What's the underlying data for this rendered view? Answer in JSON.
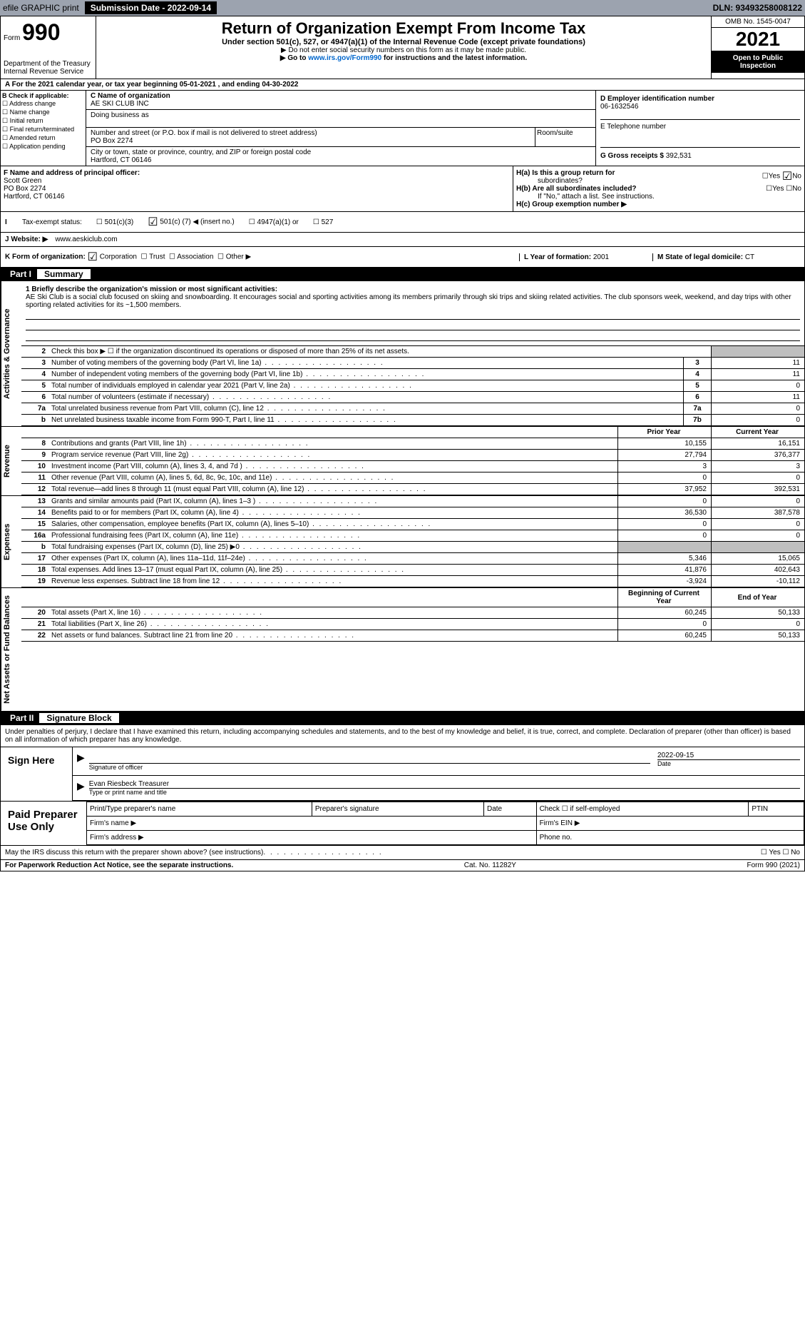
{
  "topbar": {
    "efile": "efile GRAPHIC print",
    "submission_label": "Submission Date - 2022-09-14",
    "dln": "DLN: 93493258008122"
  },
  "header": {
    "form_word": "Form",
    "form_number": "990",
    "dept1": "Department of the Treasury",
    "dept2": "Internal Revenue Service",
    "title": "Return of Organization Exempt From Income Tax",
    "subtitle": "Under section 501(c), 527, or 4947(a)(1) of the Internal Revenue Code (except private foundations)",
    "note1": "▶ Do not enter social security numbers on this form as it may be made public.",
    "note2_a": "▶ Go to ",
    "note2_link": "www.irs.gov/Form990",
    "note2_b": " for instructions and the latest information.",
    "omb": "OMB No. 1545-0047",
    "year": "2021",
    "open": "Open to Public Inspection"
  },
  "line_a": "A For the 2021 calendar year, or tax year beginning 05-01-2021    , and ending 04-30-2022",
  "box_b": {
    "hdr": "B Check if applicable:",
    "o1": "Address change",
    "o2": "Name change",
    "o3": "Initial return",
    "o4": "Final return/terminated",
    "o5": "Amended return",
    "o6": "Application pending"
  },
  "box_c": {
    "name_lbl": "C Name of organization",
    "name": "AE SKI CLUB INC",
    "dba_lbl": "Doing business as",
    "addr_lbl": "Number and street (or P.O. box if mail is not delivered to street address)",
    "room_lbl": "Room/suite",
    "addr": "PO Box 2274",
    "city_lbl": "City or town, state or province, country, and ZIP or foreign postal code",
    "city": "Hartford, CT  06146"
  },
  "box_d": {
    "ein_lbl": "D Employer identification number",
    "ein": "06-1632546",
    "phone_lbl": "E Telephone number",
    "gross_lbl": "G Gross receipts $",
    "gross": "392,531"
  },
  "box_f": {
    "lbl": "F Name and address of principal officer:",
    "name": "Scott Green",
    "addr1": "PO Box 2274",
    "addr2": "Hartford, CT  06146"
  },
  "box_h": {
    "a_lbl": "H(a)  Is this a group return for",
    "a_lbl2": "subordinates?",
    "b_lbl": "H(b)  Are all subordinates included?",
    "note": "If \"No,\" attach a list. See instructions.",
    "c_lbl": "H(c)  Group exemption number ▶",
    "yes": "Yes",
    "no": "No"
  },
  "tax_status": {
    "lbl": "Tax-exempt status:",
    "o1": "501(c)(3)",
    "o2a": "501(c) (",
    "o2n": "7",
    "o2b": ") ◀ (insert no.)",
    "o3": "4947(a)(1) or",
    "o4": "527"
  },
  "website": {
    "lbl": "J Website: ▶",
    "val": "www.aeskiclub.com"
  },
  "line_k": {
    "k_lbl": "K Form of organization:",
    "corp": "Corporation",
    "trust": "Trust",
    "assoc": "Association",
    "other": "Other ▶",
    "l_lbl": "L Year of formation:",
    "l_val": "2001",
    "m_lbl": "M State of legal domicile:",
    "m_val": "CT"
  },
  "part1": {
    "num": "Part I",
    "title": "Summary",
    "mission_lbl": "1 Briefly describe the organization's mission or most significant activities:",
    "mission": "AE Ski Club is a social club focused on skiing and snowboarding. It encourages social and sporting activities among its members primarily through ski trips and skiing related activities. The club sponsors week, weekend, and day trips with other sporting related activities for its ~1,500 members.",
    "line2": "Check this box ▶ ☐ if the organization discontinued its operations or disposed of more than 25% of its net assets.",
    "sides": {
      "ag": "Activities & Governance",
      "rev": "Revenue",
      "exp": "Expenses",
      "net": "Net Assets or Fund Balances"
    },
    "cols": {
      "prior": "Prior Year",
      "current": "Current Year",
      "boy": "Beginning of Current Year",
      "eoy": "End of Year"
    },
    "rows_ag": [
      {
        "n": "3",
        "d": "Number of voting members of the governing body (Part VI, line 1a)",
        "nc": "3",
        "v": "11"
      },
      {
        "n": "4",
        "d": "Number of independent voting members of the governing body (Part VI, line 1b)",
        "nc": "4",
        "v": "11"
      },
      {
        "n": "5",
        "d": "Total number of individuals employed in calendar year 2021 (Part V, line 2a)",
        "nc": "5",
        "v": "0"
      },
      {
        "n": "6",
        "d": "Total number of volunteers (estimate if necessary)",
        "nc": "6",
        "v": "11"
      },
      {
        "n": "7a",
        "d": "Total unrelated business revenue from Part VIII, column (C), line 12",
        "nc": "7a",
        "v": "0"
      },
      {
        "n": "b",
        "d": "Net unrelated business taxable income from Form 990-T, Part I, line 11",
        "nc": "7b",
        "v": "0"
      }
    ],
    "rows_rev": [
      {
        "n": "8",
        "d": "Contributions and grants (Part VIII, line 1h)",
        "p": "10,155",
        "c": "16,151"
      },
      {
        "n": "9",
        "d": "Program service revenue (Part VIII, line 2g)",
        "p": "27,794",
        "c": "376,377"
      },
      {
        "n": "10",
        "d": "Investment income (Part VIII, column (A), lines 3, 4, and 7d )",
        "p": "3",
        "c": "3"
      },
      {
        "n": "11",
        "d": "Other revenue (Part VIII, column (A), lines 5, 6d, 8c, 9c, 10c, and 11e)",
        "p": "0",
        "c": "0"
      },
      {
        "n": "12",
        "d": "Total revenue—add lines 8 through 11 (must equal Part VIII, column (A), line 12)",
        "p": "37,952",
        "c": "392,531"
      }
    ],
    "rows_exp": [
      {
        "n": "13",
        "d": "Grants and similar amounts paid (Part IX, column (A), lines 1–3 )",
        "p": "0",
        "c": "0"
      },
      {
        "n": "14",
        "d": "Benefits paid to or for members (Part IX, column (A), line 4)",
        "p": "36,530",
        "c": "387,578"
      },
      {
        "n": "15",
        "d": "Salaries, other compensation, employee benefits (Part IX, column (A), lines 5–10)",
        "p": "0",
        "c": "0"
      },
      {
        "n": "16a",
        "d": "Professional fundraising fees (Part IX, column (A), line 11e)",
        "p": "0",
        "c": "0"
      },
      {
        "n": "b",
        "d": "Total fundraising expenses (Part IX, column (D), line 25) ▶0",
        "p": "",
        "c": "",
        "gray": true
      },
      {
        "n": "17",
        "d": "Other expenses (Part IX, column (A), lines 11a–11d, 11f–24e)",
        "p": "5,346",
        "c": "15,065"
      },
      {
        "n": "18",
        "d": "Total expenses. Add lines 13–17 (must equal Part IX, column (A), line 25)",
        "p": "41,876",
        "c": "402,643"
      },
      {
        "n": "19",
        "d": "Revenue less expenses. Subtract line 18 from line 12",
        "p": "-3,924",
        "c": "-10,112"
      }
    ],
    "rows_net": [
      {
        "n": "20",
        "d": "Total assets (Part X, line 16)",
        "p": "60,245",
        "c": "50,133"
      },
      {
        "n": "21",
        "d": "Total liabilities (Part X, line 26)",
        "p": "0",
        "c": "0"
      },
      {
        "n": "22",
        "d": "Net assets or fund balances. Subtract line 21 from line 20",
        "p": "60,245",
        "c": "50,133"
      }
    ]
  },
  "part2": {
    "num": "Part II",
    "title": "Signature Block",
    "decl": "Under penalties of perjury, I declare that I have examined this return, including accompanying schedules and statements, and to the best of my knowledge and belief, it is true, correct, and complete. Declaration of preparer (other than officer) is based on all information of which preparer has any knowledge.",
    "sign_here": "Sign Here",
    "sig_of_officer": "Signature of officer",
    "date_lbl": "Date",
    "date": "2022-09-15",
    "officer_name": "Evan Riesbeck  Treasurer",
    "type_name_lbl": "Type or print name and title",
    "paid_lbl": "Paid Preparer Use Only",
    "p_name": "Print/Type preparer's name",
    "p_sig": "Preparer's signature",
    "p_date": "Date",
    "p_check": "Check ☐ if self-employed",
    "p_ptin": "PTIN",
    "p_firm": "Firm's name  ▶",
    "p_ein": "Firm's EIN ▶",
    "p_addr": "Firm's address ▶",
    "p_phone": "Phone no.",
    "discuss": "May the IRS discuss this return with the preparer shown above? (see instructions)",
    "yn": "☐ Yes  ☐ No"
  },
  "footer": {
    "left": "For Paperwork Reduction Act Notice, see the separate instructions.",
    "mid": "Cat. No. 11282Y",
    "right": "Form 990 (2021)"
  }
}
